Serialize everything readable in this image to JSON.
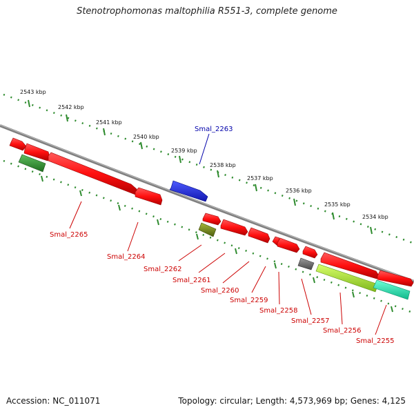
{
  "title": "Stenotrophomonas maltophilia R551-3, complete genome",
  "footer": {
    "accession": "Accession: NC_011071",
    "topology": "Topology: circular; Length: 4,573,969 bp; Genes: 4,125"
  },
  "colors": {
    "backbone": "#8a8a8a",
    "tick": "#2e8b2e",
    "gene_forward": "#ff1a1a",
    "gene_highlight": "#1e2bd6",
    "gene_green": "#3f9f3f",
    "gene_olive": "#7a8f1f",
    "gene_grey": "#6f6f6f",
    "gene_lime": "#b7f22a",
    "gene_cyan": "#19e6b4",
    "label_red": "#cc0000",
    "label_blue": "#0000aa"
  },
  "kbp_labels": [
    "2543 kbp",
    "2542 kbp",
    "2541 kbp",
    "2540 kbp",
    "2539 kbp",
    "2538 kbp",
    "2537 kbp",
    "2536 kbp",
    "2535 kbp",
    "2534 kbp"
  ],
  "gene_labels": [
    "Smal_2263",
    "Smal_2265",
    "Smal_2264",
    "Smal_2262",
    "Smal_2261",
    "Smal_2260",
    "Smal_2259",
    "Smal_2258",
    "Smal_2257",
    "Smal_2256",
    "Smal_2255"
  ]
}
